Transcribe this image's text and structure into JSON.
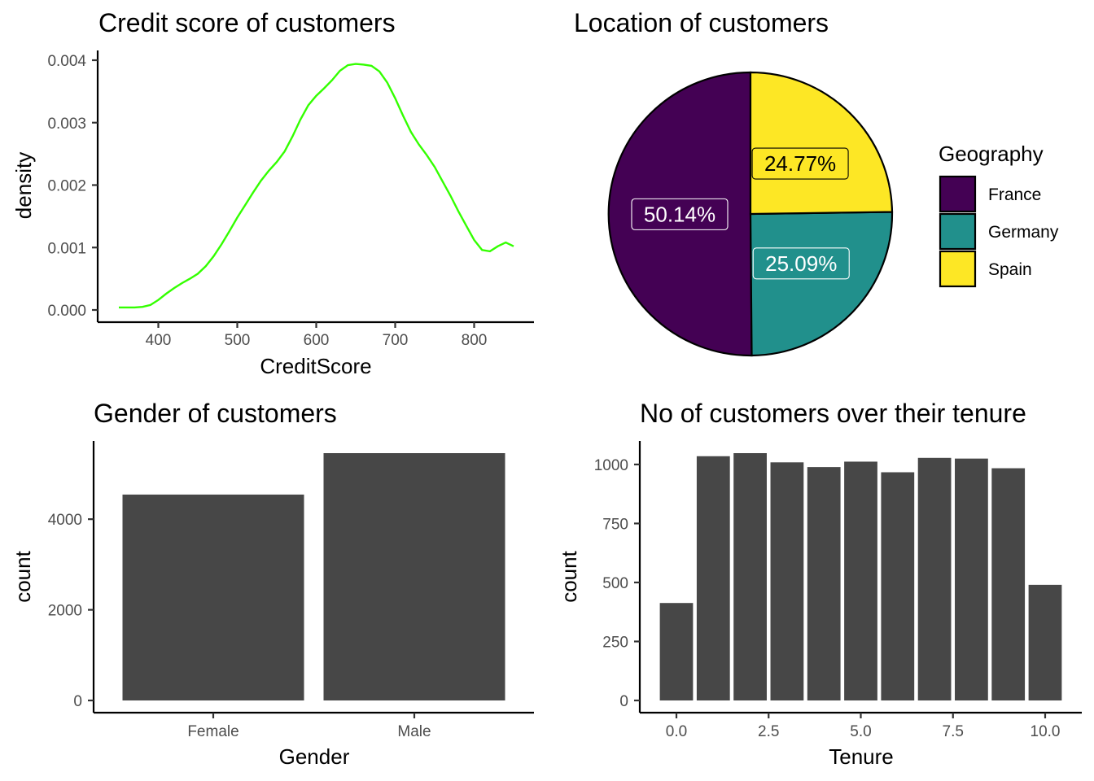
{
  "chart_data": [
    {
      "type": "line",
      "title": "Credit score of customers",
      "xlabel": "CreditScore",
      "ylabel": "density",
      "xlim": [
        350,
        850
      ],
      "ylim": [
        0,
        0.004
      ],
      "xticks": [
        "400",
        "500",
        "600",
        "700",
        "800"
      ],
      "yticks": [
        "0.000",
        "0.001",
        "0.002",
        "0.003",
        "0.004"
      ],
      "line_color": "#33ff00",
      "grid": false,
      "series": [
        {
          "x": [
            350,
            360,
            370,
            380,
            390,
            400,
            410,
            420,
            430,
            440,
            450,
            460,
            470,
            480,
            490,
            500,
            510,
            520,
            530,
            540,
            550,
            560,
            570,
            580,
            590,
            600,
            610,
            620,
            630,
            640,
            650,
            660,
            670,
            680,
            690,
            700,
            710,
            720,
            730,
            740,
            750,
            760,
            770,
            780,
            790,
            800,
            810,
            820,
            830,
            840,
            850
          ],
          "values": [
            4e-05,
            4e-05,
            4e-05,
            5e-05,
            8e-05,
            0.00016,
            0.00026,
            0.00035,
            0.00043,
            0.0005,
            0.00058,
            0.0007,
            0.00086,
            0.00105,
            0.00126,
            0.00148,
            0.00168,
            0.00188,
            0.00207,
            0.00223,
            0.00237,
            0.00254,
            0.00278,
            0.00305,
            0.00328,
            0.00343,
            0.00355,
            0.00368,
            0.00383,
            0.00392,
            0.00394,
            0.00393,
            0.00391,
            0.00382,
            0.00364,
            0.00339,
            0.00311,
            0.00285,
            0.00265,
            0.00248,
            0.00229,
            0.00206,
            0.00183,
            0.00158,
            0.00135,
            0.00112,
            0.00096,
            0.00094,
            0.00102,
            0.00108,
            0.00102
          ]
        }
      ]
    },
    {
      "type": "pie",
      "title": "Location of customers",
      "legend_title": "Geography",
      "legend_position": "right",
      "categories": [
        "France",
        "Germany",
        "Spain"
      ],
      "values": [
        50.14,
        25.09,
        24.77
      ],
      "labels": [
        "50.14%",
        "25.09%",
        "24.77%"
      ],
      "colors": [
        "#440154",
        "#21908c",
        "#fde725"
      ]
    },
    {
      "type": "bar",
      "title": "Gender of customers",
      "xlabel": "Gender",
      "ylabel": "count",
      "categories": [
        "Female",
        "Male"
      ],
      "values": [
        4543,
        5457
      ],
      "ylim": [
        0,
        5457
      ],
      "yticks": [
        "0",
        "2000",
        "4000"
      ],
      "bar_color": "#474747",
      "grid": false
    },
    {
      "type": "bar",
      "title": "No of customers over their tenure",
      "xlabel": "Tenure",
      "ylabel": "count",
      "x": [
        0,
        1,
        2,
        3,
        4,
        5,
        6,
        7,
        8,
        9,
        10
      ],
      "values": [
        413,
        1035,
        1048,
        1009,
        989,
        1012,
        967,
        1028,
        1025,
        984,
        490
      ],
      "xlim": [
        -0.5,
        10.5
      ],
      "ylim": [
        0,
        1048
      ],
      "xticks": [
        "0.0",
        "2.5",
        "5.0",
        "7.5",
        "10.0"
      ],
      "yticks": [
        "0",
        "250",
        "500",
        "750",
        "1000"
      ],
      "bar_color": "#474747",
      "grid": false
    }
  ]
}
